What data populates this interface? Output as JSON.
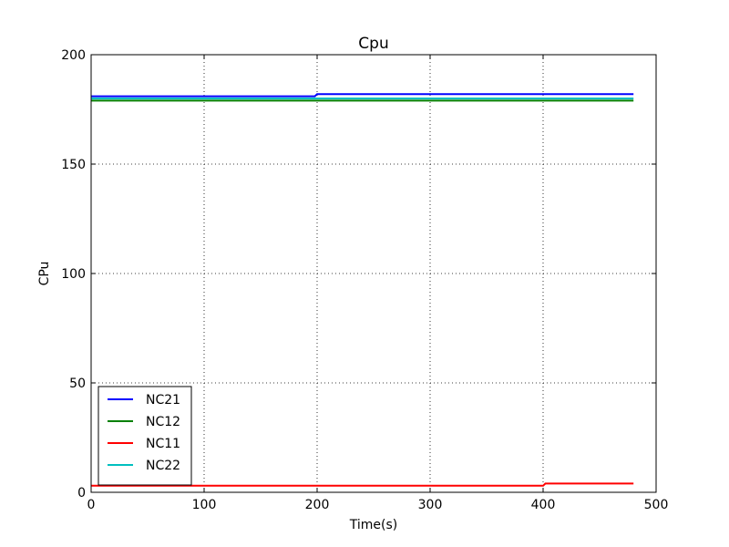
{
  "chart_data": {
    "type": "line",
    "title": "Cpu",
    "xlabel": "Time(s)",
    "ylabel": "CPu",
    "xlim": [
      0,
      500
    ],
    "ylim": [
      0,
      200
    ],
    "xticks": [
      0,
      100,
      200,
      300,
      400,
      500
    ],
    "yticks": [
      0,
      50,
      100,
      150,
      200
    ],
    "grid": true,
    "legend_position": "lower-left",
    "series": [
      {
        "name": "NC21",
        "color": "#0000ff",
        "x": [
          0,
          198,
          200,
          480
        ],
        "y": [
          181,
          181,
          182,
          182
        ]
      },
      {
        "name": "NC12",
        "color": "#008000",
        "x": [
          0,
          480
        ],
        "y": [
          179,
          179
        ]
      },
      {
        "name": "NC11",
        "color": "#ff0000",
        "x": [
          0,
          400,
          402,
          480
        ],
        "y": [
          3,
          3,
          4,
          4
        ]
      },
      {
        "name": "NC22",
        "color": "#00bfbf",
        "x": [
          0,
          480
        ],
        "y": [
          180,
          180
        ]
      }
    ]
  }
}
